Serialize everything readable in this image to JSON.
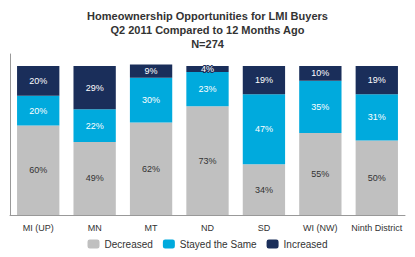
{
  "chart_data": {
    "type": "bar",
    "title": "Homeownership Opportunities for LMI Buyers\nQ2 2011 Compared to 12 Months Ago\nN=274",
    "categories": [
      "MI (UP)",
      "MN",
      "MT",
      "ND",
      "SD",
      "WI (NW)",
      "Ninth District"
    ],
    "series": [
      {
        "name": "Decreased",
        "color": "#c0c0c0",
        "values": [
          60,
          49,
          62,
          73,
          34,
          55,
          50
        ],
        "value_labels": [
          "60%",
          "49%",
          "62%",
          "73%",
          "34%",
          "55%",
          "50%"
        ]
      },
      {
        "name": "Stayed the Same",
        "color": "#00aadd",
        "values": [
          20,
          22,
          30,
          23,
          47,
          35,
          31
        ],
        "value_labels": [
          "20%",
          "22%",
          "30%",
          "23%",
          "47%",
          "35%",
          "31%"
        ]
      },
      {
        "name": "Increased",
        "color": "#1a2e5a",
        "values": [
          20,
          29,
          9,
          4,
          19,
          10,
          19
        ],
        "value_labels": [
          "20%",
          "29%",
          "9%",
          "4%",
          "19%",
          "10%",
          "19%"
        ]
      }
    ],
    "stacked": true,
    "data_labels": true,
    "ylim": [
      0,
      108
    ],
    "tick_labels": "x",
    "grid": false,
    "legend": "bottom"
  }
}
